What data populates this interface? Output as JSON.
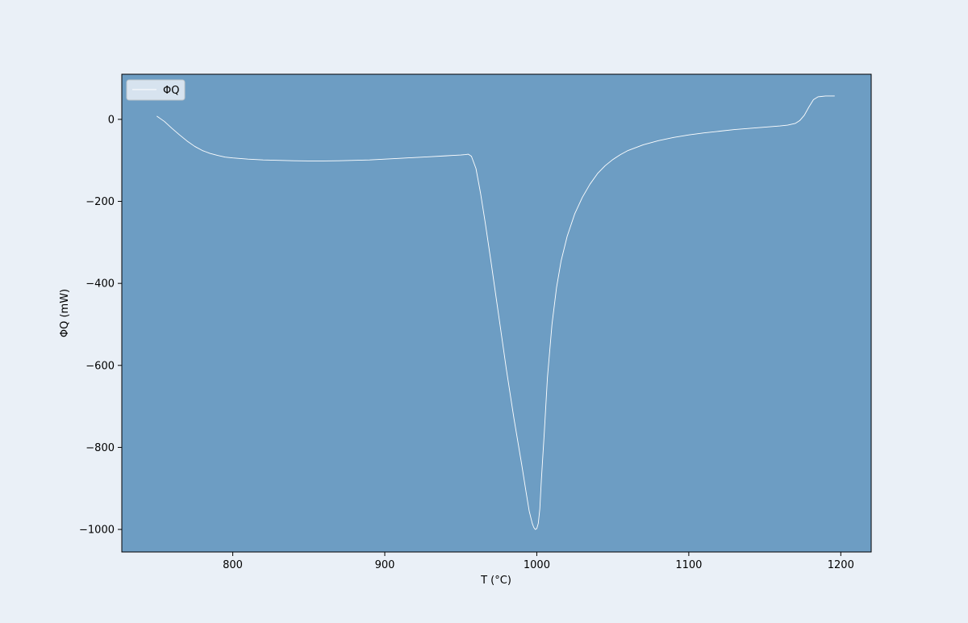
{
  "page_background": "#eaf0f7",
  "chart_data": {
    "type": "line",
    "title": "",
    "xlabel": "T (°C)",
    "ylabel": "ΦQ (mW)",
    "xlim": [
      727,
      1220
    ],
    "ylim": [
      -1055,
      110
    ],
    "x_ticks": [
      800,
      900,
      1000,
      1100,
      1200
    ],
    "x_tick_labels": [
      "800",
      "900",
      "1000",
      "1100",
      "1200"
    ],
    "y_ticks": [
      0,
      -200,
      -400,
      -600,
      -800,
      -1000
    ],
    "y_tick_labels": [
      "0",
      "−200",
      "−400",
      "−600",
      "−800",
      "−1000"
    ],
    "grid": false,
    "legend": {
      "placement": "upper-left",
      "entries": [
        "ΦQ"
      ]
    },
    "colors": {
      "plot_background": "#6d9dc3",
      "line": "#ffffff",
      "legend_background": "#eaf0f7"
    },
    "series": [
      {
        "name": "ΦQ",
        "x": [
          750,
          755,
          760,
          765,
          770,
          775,
          780,
          785,
          790,
          795,
          800,
          810,
          820,
          830,
          840,
          850,
          860,
          870,
          880,
          890,
          900,
          910,
          920,
          930,
          940,
          945,
          950,
          953,
          955,
          957,
          960,
          963,
          966,
          970,
          975,
          980,
          985,
          990,
          993,
          995,
          997,
          998,
          999,
          1000,
          1001,
          1002,
          1003,
          1005,
          1007,
          1010,
          1013,
          1016,
          1020,
          1025,
          1030,
          1035,
          1040,
          1045,
          1050,
          1055,
          1060,
          1070,
          1080,
          1090,
          1100,
          1110,
          1120,
          1130,
          1140,
          1150,
          1160,
          1165,
          1170,
          1173,
          1176,
          1179,
          1182,
          1185,
          1190,
          1196
        ],
        "y": [
          8,
          -5,
          -22,
          -38,
          -53,
          -66,
          -76,
          -83,
          -88,
          -92,
          -94,
          -97,
          -99,
          -100,
          -101,
          -101.5,
          -101.5,
          -101,
          -100,
          -99,
          -97,
          -95,
          -93,
          -91,
          -89,
          -88,
          -87,
          -86,
          -85,
          -90,
          -120,
          -180,
          -250,
          -350,
          -480,
          -610,
          -730,
          -840,
          -910,
          -955,
          -985,
          -995,
          -1000,
          -998,
          -985,
          -950,
          -880,
          -760,
          -630,
          -500,
          -410,
          -345,
          -285,
          -230,
          -190,
          -158,
          -132,
          -113,
          -98,
          -86,
          -76,
          -62,
          -52,
          -44,
          -38,
          -33,
          -29,
          -25,
          -22,
          -19,
          -16,
          -14,
          -10,
          -3,
          10,
          30,
          48,
          55,
          57,
          57
        ]
      }
    ]
  }
}
